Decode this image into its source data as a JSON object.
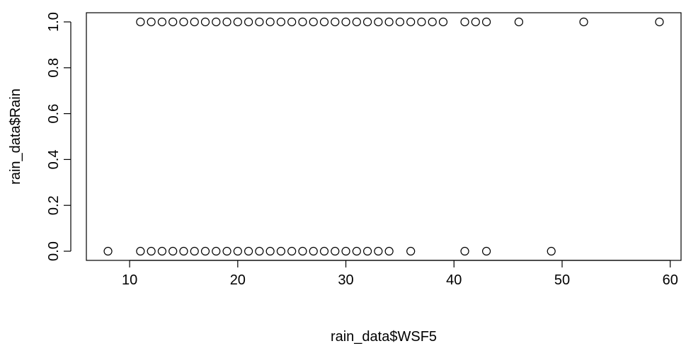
{
  "chart_data": {
    "type": "scatter",
    "xlabel": "rain_data$WSF5",
    "ylabel": "rain_data$Rain",
    "xlim": [
      6,
      61
    ],
    "ylim": [
      -0.04,
      1.04
    ],
    "xticks": [
      10,
      20,
      30,
      40,
      50,
      60
    ],
    "yticks": [
      0.0,
      0.2,
      0.4,
      0.6,
      0.8,
      1.0
    ],
    "ytick_labels": [
      "0.0",
      "0.2",
      "0.4",
      "0.6",
      "0.8",
      "1.0"
    ],
    "grid": false,
    "marker": "open-circle",
    "series": [
      {
        "points": [
          [
            11,
            1
          ],
          [
            12,
            1
          ],
          [
            13,
            1
          ],
          [
            14,
            1
          ],
          [
            15,
            1
          ],
          [
            16,
            1
          ],
          [
            17,
            1
          ],
          [
            18,
            1
          ],
          [
            19,
            1
          ],
          [
            20,
            1
          ],
          [
            21,
            1
          ],
          [
            22,
            1
          ],
          [
            23,
            1
          ],
          [
            24,
            1
          ],
          [
            25,
            1
          ],
          [
            26,
            1
          ],
          [
            27,
            1
          ],
          [
            28,
            1
          ],
          [
            29,
            1
          ],
          [
            30,
            1
          ],
          [
            31,
            1
          ],
          [
            32,
            1
          ],
          [
            33,
            1
          ],
          [
            34,
            1
          ],
          [
            35,
            1
          ],
          [
            36,
            1
          ],
          [
            37,
            1
          ],
          [
            38,
            1
          ],
          [
            39,
            1
          ],
          [
            41,
            1
          ],
          [
            42,
            1
          ],
          [
            43,
            1
          ],
          [
            46,
            1
          ],
          [
            52,
            1
          ],
          [
            59,
            1
          ],
          [
            8,
            0
          ],
          [
            11,
            0
          ],
          [
            12,
            0
          ],
          [
            13,
            0
          ],
          [
            14,
            0
          ],
          [
            15,
            0
          ],
          [
            16,
            0
          ],
          [
            17,
            0
          ],
          [
            18,
            0
          ],
          [
            19,
            0
          ],
          [
            20,
            0
          ],
          [
            21,
            0
          ],
          [
            22,
            0
          ],
          [
            23,
            0
          ],
          [
            24,
            0
          ],
          [
            25,
            0
          ],
          [
            26,
            0
          ],
          [
            27,
            0
          ],
          [
            28,
            0
          ],
          [
            29,
            0
          ],
          [
            30,
            0
          ],
          [
            31,
            0
          ],
          [
            32,
            0
          ],
          [
            33,
            0
          ],
          [
            34,
            0
          ],
          [
            36,
            0
          ],
          [
            41,
            0
          ],
          [
            43,
            0
          ],
          [
            49,
            0
          ]
        ]
      }
    ]
  }
}
